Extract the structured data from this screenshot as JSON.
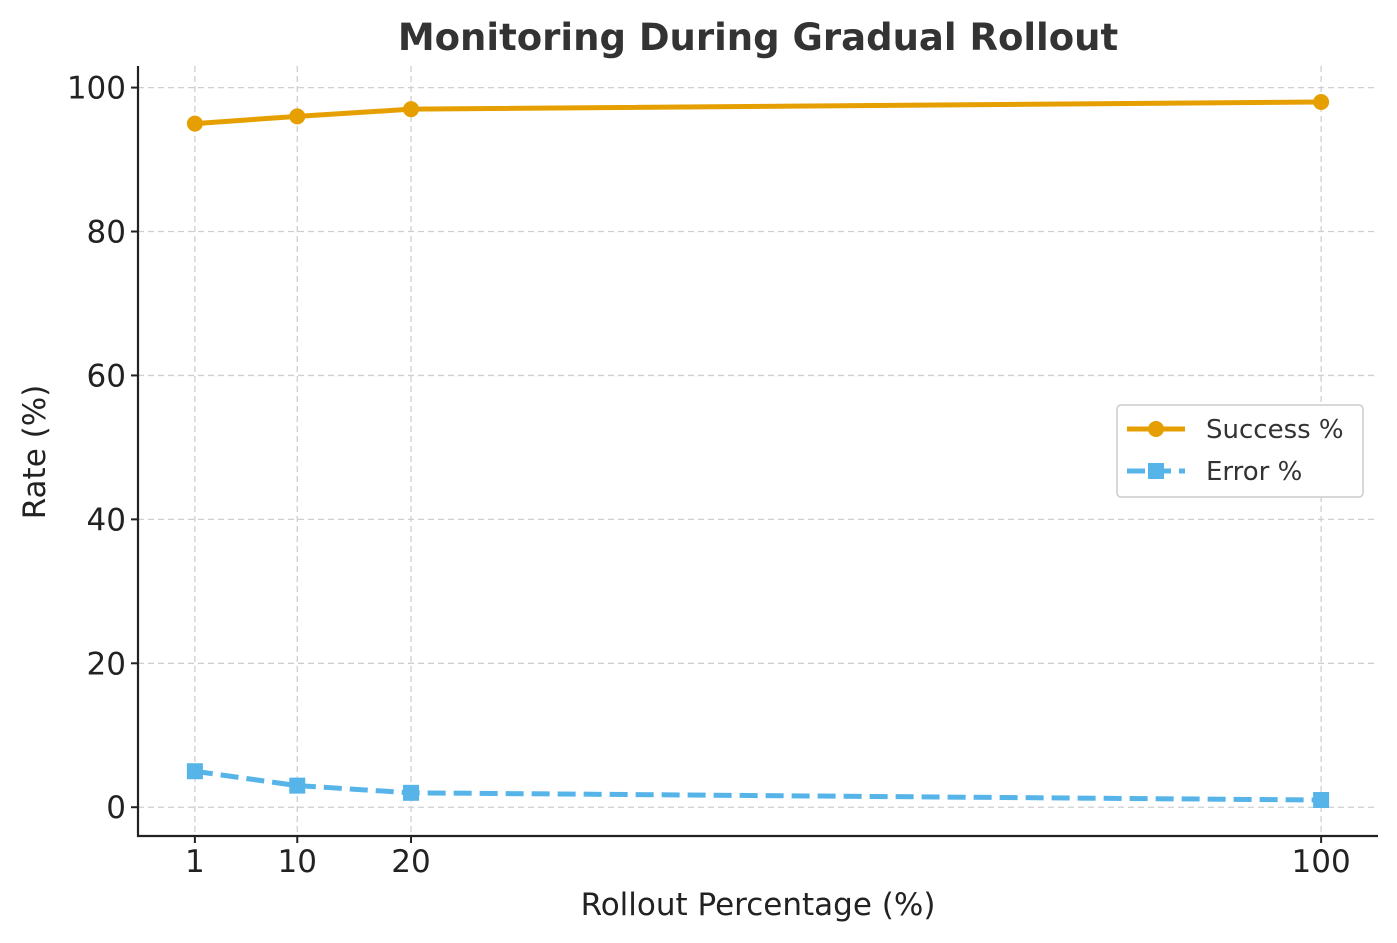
{
  "chart_data": {
    "type": "line",
    "title": "Monitoring During Gradual Rollout",
    "xlabel": "Rollout Percentage (%)",
    "ylabel": "Rate (%)",
    "x": [
      1,
      10,
      20,
      100
    ],
    "x_ticks": [
      "1",
      "10",
      "20",
      "100"
    ],
    "y_ticks": [
      "0",
      "20",
      "40",
      "60",
      "80",
      "100"
    ],
    "xlim": [
      -4,
      105
    ],
    "ylim": [
      -4,
      103
    ],
    "grid": true,
    "legend_position": "center-right",
    "series": [
      {
        "name": "Success %",
        "values": [
          95,
          96,
          97,
          98
        ],
        "color": "#E69F00",
        "marker": "circle",
        "line_style": "solid"
      },
      {
        "name": "Error %",
        "values": [
          5,
          3,
          2,
          1
        ],
        "color": "#56B4E9",
        "marker": "square",
        "line_style": "dashed"
      }
    ]
  }
}
